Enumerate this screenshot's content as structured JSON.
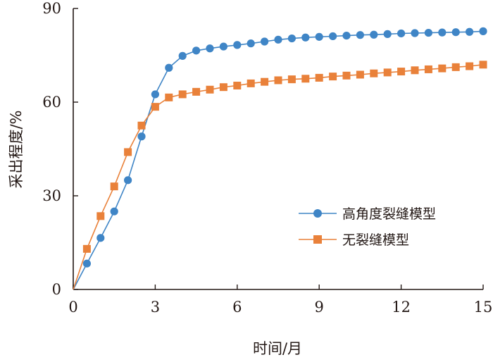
{
  "chart_data": {
    "type": "line",
    "xlabel": "时间/月",
    "ylabel": "采出程度/%",
    "xlim": [
      0,
      15
    ],
    "ylim": [
      0,
      90
    ],
    "xticks": [
      0,
      3,
      6,
      9,
      12,
      15
    ],
    "yticks": [
      0,
      30,
      60,
      90
    ],
    "grid": false,
    "legend_position": "bottom-right",
    "series": [
      {
        "name": "高角度裂缝模型",
        "color": "#3f85c6",
        "marker": "circle",
        "x": [
          0,
          0.5,
          1,
          1.5,
          2,
          2.5,
          3,
          3.5,
          4,
          4.5,
          5,
          5.5,
          6,
          6.5,
          7,
          7.5,
          8,
          8.5,
          9,
          9.5,
          10,
          10.5,
          11,
          11.5,
          12,
          12.5,
          13,
          13.5,
          14,
          14.5,
          15
        ],
        "y": [
          0,
          8.3,
          16.5,
          25,
          35,
          49,
          62.5,
          71,
          74.8,
          76.5,
          77.2,
          77.8,
          78.3,
          78.8,
          79.4,
          80,
          80.4,
          80.7,
          80.9,
          81.1,
          81.3,
          81.5,
          81.6,
          81.8,
          82,
          82.1,
          82.2,
          82.3,
          82.4,
          82.5,
          82.7
        ]
      },
      {
        "name": "无裂缝模型",
        "color": "#e9813a",
        "marker": "square",
        "x": [
          0,
          0.5,
          1,
          1.5,
          2,
          2.5,
          3,
          3.5,
          4,
          4.5,
          5,
          5.5,
          6,
          6.5,
          7,
          7.5,
          8,
          8.5,
          9,
          9.5,
          10,
          10.5,
          11,
          11.5,
          12,
          12.5,
          13,
          13.5,
          14,
          14.5,
          15
        ],
        "y": [
          0,
          13,
          23.5,
          33,
          44,
          52.5,
          58.5,
          61.5,
          62.5,
          63.3,
          64,
          64.8,
          65.3,
          66,
          66.5,
          67,
          67.3,
          67.5,
          67.8,
          68.2,
          68.5,
          68.8,
          69.2,
          69.5,
          69.8,
          70.2,
          70.5,
          70.8,
          71.2,
          71.5,
          72
        ]
      }
    ]
  }
}
